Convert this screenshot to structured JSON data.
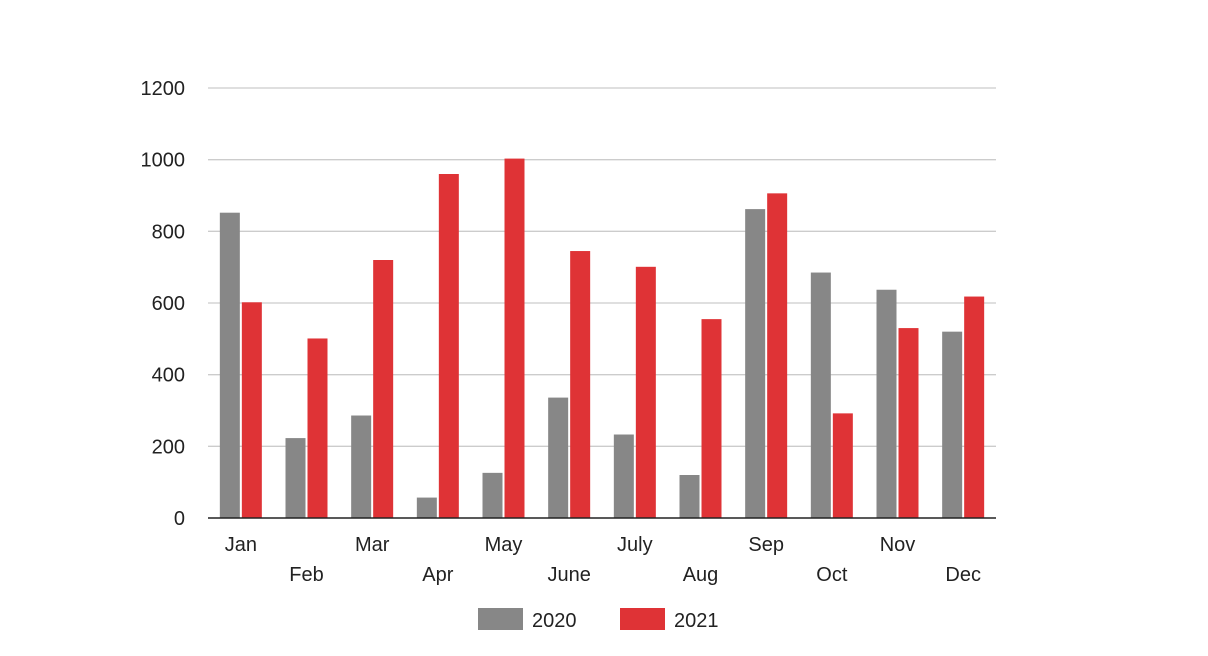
{
  "chart_data": {
    "type": "bar",
    "categories": [
      "Jan",
      "Feb",
      "Mar",
      "Apr",
      "May",
      "June",
      "July",
      "Aug",
      "Sep",
      "Oct",
      "Nov",
      "Dec"
    ],
    "series": [
      {
        "name": "2020",
        "color": "#878787",
        "values": [
          852,
          223,
          286,
          57,
          126,
          336,
          233,
          120,
          862,
          685,
          637,
          520
        ]
      },
      {
        "name": "2021",
        "color": "#df3336",
        "values": [
          602,
          501,
          720,
          960,
          1003,
          745,
          701,
          555,
          906,
          292,
          530,
          618
        ]
      }
    ],
    "ylim": [
      0,
      1200
    ],
    "yticks": [
      0,
      200,
      400,
      600,
      800,
      1000,
      1200
    ],
    "grid": true,
    "legend_position": "bottom-center"
  }
}
